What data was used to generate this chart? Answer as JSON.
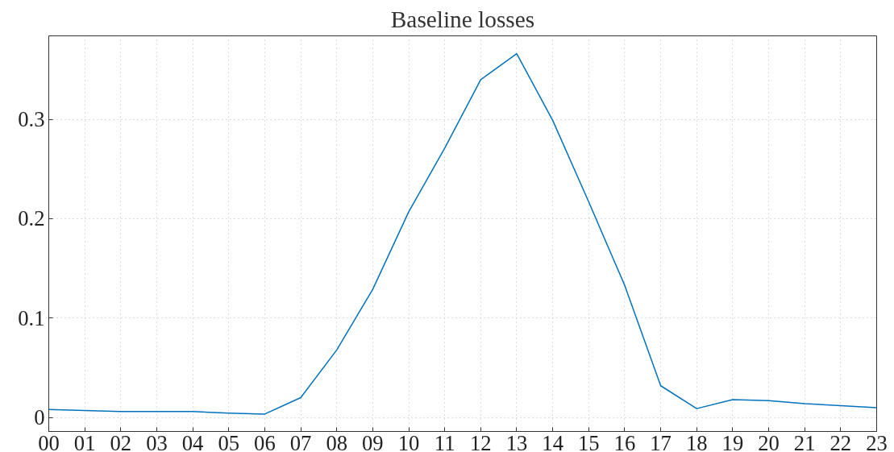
{
  "chart_data": {
    "type": "line",
    "title": "Baseline losses",
    "categories": [
      "00",
      "01",
      "02",
      "03",
      "04",
      "05",
      "06",
      "07",
      "08",
      "09",
      "10",
      "11",
      "12",
      "13",
      "14",
      "15",
      "16",
      "17",
      "18",
      "19",
      "20",
      "21",
      "22",
      "23"
    ],
    "series": [
      {
        "color": "#0072bd",
        "values": [
          0.008,
          0.007,
          0.006,
          0.006,
          0.006,
          0.0045,
          0.0035,
          0.02,
          0.068,
          0.129,
          0.207,
          0.271,
          0.34,
          0.366,
          0.299,
          0.217,
          0.133,
          0.032,
          0.009,
          0.018,
          0.017,
          0.014,
          0.012,
          0.01
        ]
      }
    ],
    "ylim": [
      -0.014,
      0.384
    ],
    "yticks": [
      0,
      0.1,
      0.2,
      0.3
    ],
    "grid": true,
    "line_style": "solid",
    "marker": "none"
  }
}
